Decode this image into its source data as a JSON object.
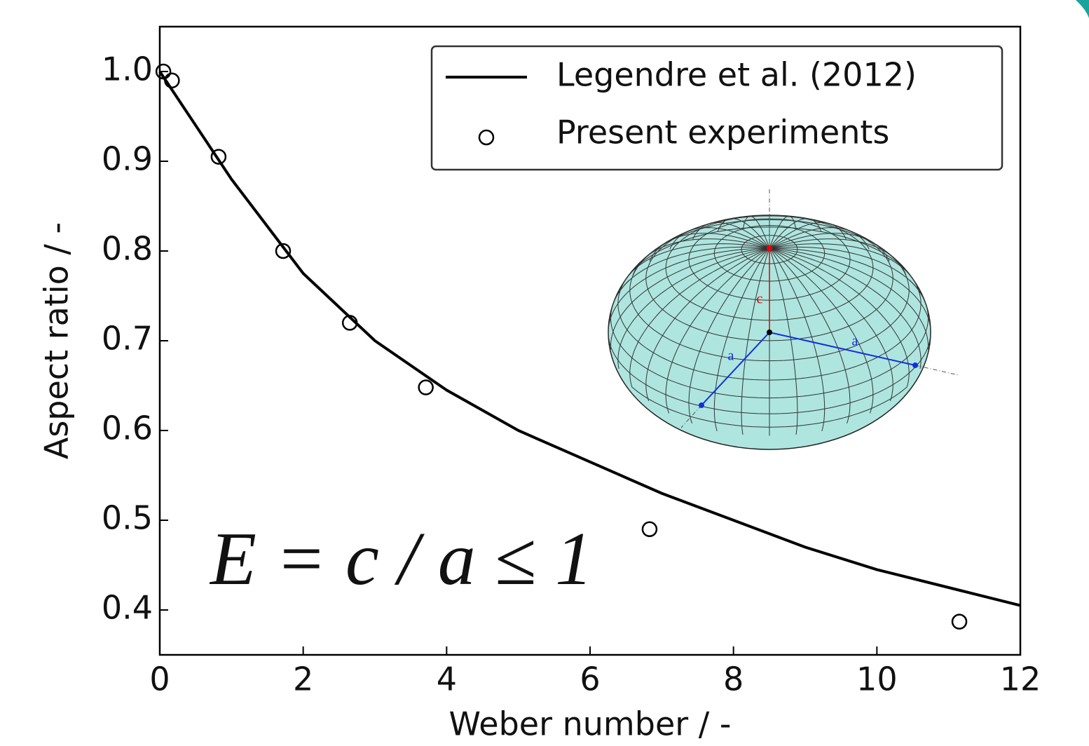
{
  "chart_data": {
    "type": "line",
    "xlabel": "Weber number / -",
    "ylabel": "Aspect ratio / -",
    "annotation": "E = c / a ≤ 1",
    "inset_labels": [
      "c",
      "a",
      "a"
    ],
    "xlim": [
      0,
      12
    ],
    "ylim": [
      0.35,
      1.05
    ],
    "xticks": [
      0,
      2,
      4,
      6,
      8,
      10,
      12
    ],
    "yticks": [
      0.4,
      0.5,
      0.6,
      0.7,
      0.8,
      0.9,
      {
        "value": 1,
        "label": "1.0"
      }
    ],
    "legend": "upper right",
    "series": [
      {
        "name": "Legendre et al. (2012)",
        "type": "line",
        "color": "#000000",
        "x": [
          0,
          0.5,
          1,
          2,
          3,
          4,
          5,
          6,
          7,
          8,
          9,
          10,
          11,
          12
        ],
        "values": [
          1.0,
          0.94,
          0.88,
          0.775,
          0.7,
          0.645,
          0.6,
          0.565,
          0.53,
          0.5,
          0.47,
          0.445,
          0.425,
          0.405
        ]
      },
      {
        "name": "Present experiments",
        "type": "scatter",
        "color": "#000000",
        "x": [
          0.05,
          0.17,
          0.82,
          1.72,
          2.65,
          3.71,
          6.83,
          11.15
        ],
        "values": [
          1.0,
          0.99,
          0.905,
          0.8,
          0.72,
          0.648,
          0.49,
          0.387
        ]
      }
    ]
  }
}
